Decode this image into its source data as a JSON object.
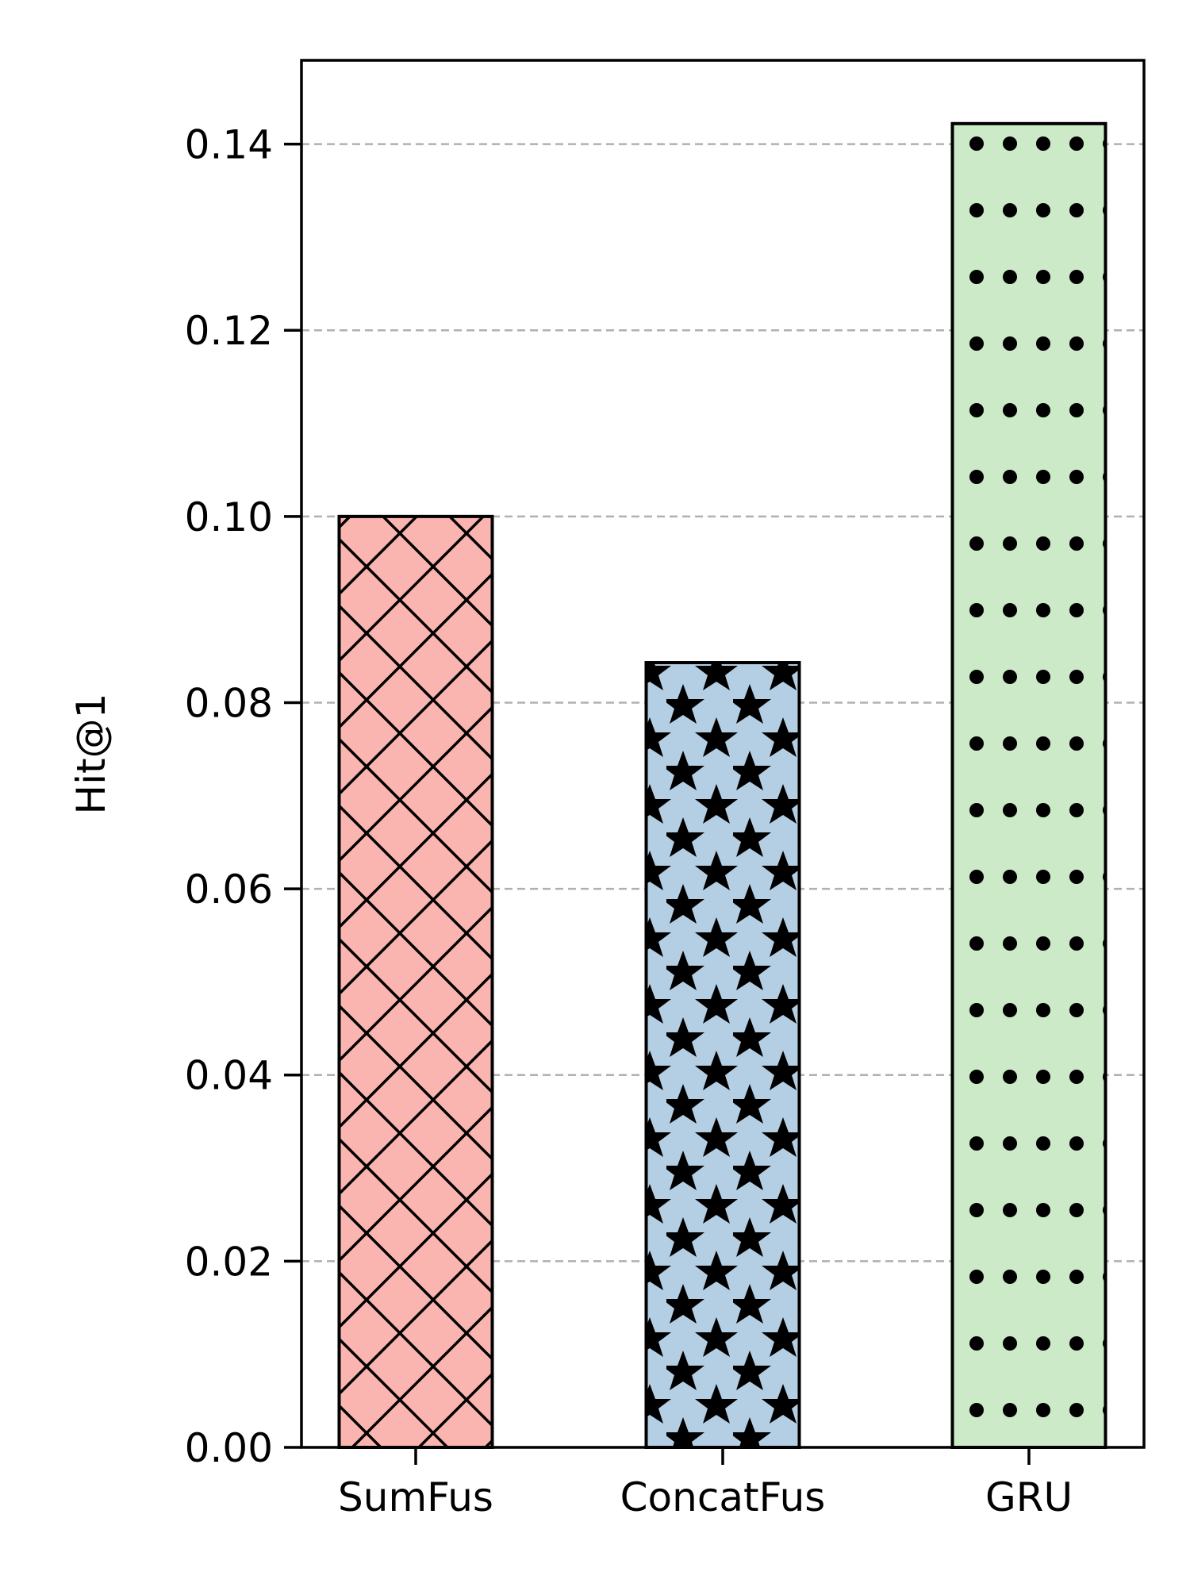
{
  "chart_data": {
    "type": "bar",
    "title": "",
    "xlabel": "",
    "ylabel": "Hit@1",
    "categories": [
      "SumFus",
      "ConcatFus",
      "GRU"
    ],
    "values": [
      0.1,
      0.0843,
      0.1422
    ],
    "ylim": [
      0,
      0.149
    ],
    "yticks": [
      "0.00",
      "0.02",
      "0.04",
      "0.06",
      "0.08",
      "0.10",
      "0.12",
      "0.14"
    ],
    "grid": "horizontal dashed",
    "legend": "none",
    "bars": [
      {
        "color": "#fab5b0",
        "hatch": "crosshatch"
      },
      {
        "color": "#b4cee3",
        "hatch": "stars"
      },
      {
        "color": "#cdeac8",
        "hatch": "dots"
      }
    ]
  }
}
